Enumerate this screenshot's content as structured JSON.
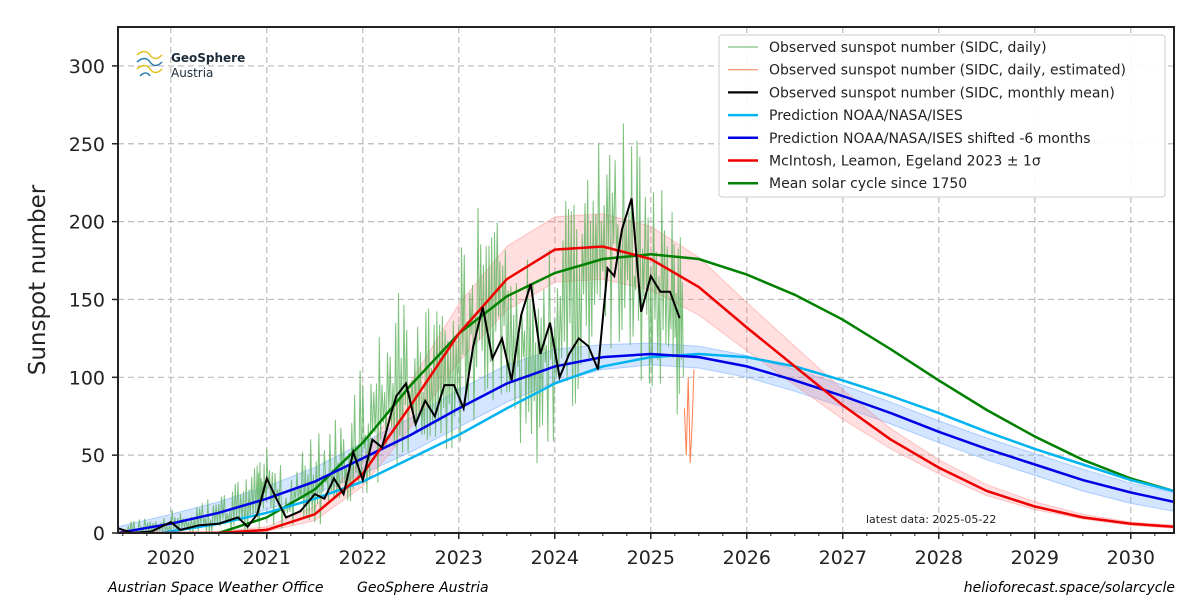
{
  "chart_data": {
    "type": "line",
    "ylabel": "Sunspot number",
    "xlim": [
      2019.45,
      2030.45
    ],
    "ylim": [
      0,
      325
    ],
    "x_ticks": [
      2020,
      2021,
      2022,
      2023,
      2024,
      2025,
      2026,
      2027,
      2028,
      2029,
      2030
    ],
    "y_ticks": [
      0,
      50,
      100,
      150,
      200,
      250,
      300
    ],
    "grid": true,
    "legend_position": "top-right",
    "latest_data": "latest data: 2025-05-22",
    "series": [
      {
        "name": "Observed sunspot number (SIDC, daily)",
        "color": "#5cb25c",
        "style": "thin",
        "x": [
          2019.5,
          2019.7,
          2019.9,
          2020.1,
          2020.3,
          2020.5,
          2020.7,
          2020.9,
          2021.0,
          2021.2,
          2021.4,
          2021.6,
          2021.8,
          2022.0,
          2022.2,
          2022.4,
          2022.6,
          2022.8,
          2023.0,
          2023.2,
          2023.4,
          2023.6,
          2023.8,
          2024.0,
          2024.2,
          2024.4,
          2024.6,
          2024.8,
          2025.0,
          2025.2,
          2025.35
        ],
        "y": [
          0,
          2,
          1,
          4,
          6,
          8,
          12,
          15,
          30,
          15,
          30,
          35,
          40,
          60,
          80,
          95,
          85,
          90,
          110,
          140,
          150,
          130,
          105,
          120,
          150,
          180,
          200,
          160,
          150,
          150,
          120
        ],
        "y_low": [
          0,
          0,
          0,
          0,
          0,
          0,
          0,
          0,
          5,
          0,
          5,
          5,
          10,
          20,
          30,
          40,
          40,
          45,
          55,
          75,
          70,
          60,
          40,
          55,
          80,
          100,
          110,
          90,
          80,
          75,
          60
        ],
        "y_high": [
          12,
          10,
          8,
          20,
          25,
          25,
          35,
          45,
          55,
          40,
          60,
          70,
          80,
          110,
          130,
          160,
          150,
          160,
          180,
          210,
          230,
          200,
          170,
          200,
          240,
          285,
          290,
          260,
          245,
          220,
          190
        ]
      },
      {
        "name": "Observed sunspot number (SIDC, daily, estimated)",
        "color": "#ff7f50",
        "style": "thin",
        "x": [
          2025.35,
          2025.37,
          2025.39,
          2025.41,
          2025.43,
          2025.45
        ],
        "y": [
          80,
          50,
          100,
          45,
          70,
          105
        ]
      },
      {
        "name": "Observed sunspot number (SIDC, monthly mean)",
        "color": "#000000",
        "style": "solid",
        "x": [
          2019.45,
          2019.6,
          2019.8,
          2020.0,
          2020.1,
          2020.3,
          2020.5,
          2020.7,
          2020.8,
          2020.9,
          2021.0,
          2021.1,
          2021.2,
          2021.35,
          2021.5,
          2021.6,
          2021.7,
          2021.8,
          2021.9,
          2022.0,
          2022.1,
          2022.2,
          2022.3,
          2022.35,
          2022.45,
          2022.55,
          2022.65,
          2022.75,
          2022.85,
          2022.95,
          2023.05,
          2023.15,
          2023.25,
          2023.35,
          2023.45,
          2023.55,
          2023.65,
          2023.75,
          2023.85,
          2023.95,
          2024.05,
          2024.15,
          2024.25,
          2024.35,
          2024.45,
          2024.55,
          2024.62,
          2024.7,
          2024.8,
          2024.9,
          2025.0,
          2025.1,
          2025.2,
          2025.3
        ],
        "y": [
          3,
          0,
          1,
          7,
          2,
          5,
          6,
          10,
          4,
          12,
          35,
          22,
          10,
          14,
          25,
          22,
          35,
          25,
          52,
          34,
          60,
          55,
          78,
          88,
          96,
          70,
          85,
          75,
          95,
          95,
          80,
          120,
          145,
          112,
          125,
          98,
          140,
          160,
          115,
          135,
          100,
          115,
          125,
          120,
          105,
          170,
          165,
          195,
          215,
          142,
          165,
          155,
          155,
          138
        ]
      },
      {
        "name": "Prediction NOAA/NASA/ISES",
        "color": "#00b4f0",
        "style": "solid",
        "x": [
          2019.9,
          2020.5,
          2021.0,
          2021.5,
          2022.0,
          2022.5,
          2023.0,
          2023.5,
          2024.0,
          2024.5,
          2025.0,
          2025.5,
          2026.0,
          2026.5,
          2027.0,
          2027.5,
          2028.0,
          2028.5,
          2029.0,
          2029.5,
          2030.0,
          2030.45
        ],
        "y": [
          0,
          6,
          13,
          22,
          33,
          48,
          63,
          80,
          96,
          107,
          113,
          115,
          113,
          107,
          98,
          88,
          77,
          65,
          54,
          44,
          34,
          27
        ]
      },
      {
        "name": "Prediction NOAA/NASA/ISES shifted -6 months",
        "color": "#0000e6",
        "style": "solid",
        "x": [
          2019.45,
          2020.0,
          2020.5,
          2021.0,
          2021.5,
          2022.0,
          2022.5,
          2023.0,
          2023.5,
          2024.0,
          2024.5,
          2025.0,
          2025.5,
          2026.0,
          2026.5,
          2027.0,
          2027.5,
          2028.0,
          2028.5,
          2029.0,
          2029.5,
          2030.0,
          2030.45
        ],
        "y": [
          0,
          6,
          13,
          22,
          33,
          48,
          63,
          80,
          96,
          107,
          113,
          115,
          113,
          107,
          98,
          88,
          77,
          65,
          54,
          44,
          34,
          26,
          20
        ],
        "band_low": [
          0,
          2,
          7,
          15,
          25,
          38,
          52,
          68,
          84,
          97,
          105,
          108,
          106,
          100,
          91,
          81,
          70,
          58,
          47,
          37,
          27,
          19,
          14
        ],
        "band_high": [
          4,
          12,
          20,
          30,
          42,
          58,
          74,
          92,
          108,
          118,
          121,
          122,
          120,
          114,
          105,
          95,
          84,
          72,
          61,
          51,
          41,
          32,
          26
        ]
      },
      {
        "name": "McIntosh, Leamon, Egeland 2023 ± 1σ",
        "color": "#ee0000",
        "style": "solid",
        "x": [
          2019.45,
          2020.0,
          2020.5,
          2021.0,
          2021.5,
          2022.0,
          2022.5,
          2023.0,
          2023.5,
          2024.0,
          2024.5,
          2025.0,
          2025.5,
          2026.0,
          2026.5,
          2027.0,
          2027.5,
          2028.0,
          2028.5,
          2029.0,
          2029.5,
          2030.0,
          2030.45
        ],
        "y": [
          0,
          0,
          0,
          2,
          12,
          38,
          82,
          128,
          163,
          182,
          184,
          176,
          158,
          132,
          107,
          82,
          60,
          42,
          27,
          17,
          10,
          6,
          4
        ],
        "band_low": [
          0,
          0,
          0,
          1,
          8,
          30,
          68,
          110,
          143,
          161,
          163,
          156,
          140,
          117,
          95,
          73,
          54,
          38,
          24,
          15,
          9,
          5,
          3
        ],
        "band_high": [
          0,
          0,
          1,
          4,
          17,
          48,
          97,
          147,
          184,
          203,
          205,
          197,
          177,
          148,
          120,
          92,
          67,
          47,
          31,
          20,
          12,
          7,
          5
        ]
      },
      {
        "name": "Mean solar cycle since 1750",
        "color": "#008000",
        "style": "solid",
        "x": [
          2020.5,
          2021.0,
          2021.5,
          2022.0,
          2022.5,
          2023.0,
          2023.5,
          2024.0,
          2024.5,
          2025.0,
          2025.5,
          2026.0,
          2026.5,
          2027.0,
          2027.5,
          2028.0,
          2028.5,
          2029.0,
          2029.5,
          2030.0,
          2030.45
        ],
        "y": [
          0,
          10,
          28,
          58,
          95,
          128,
          152,
          167,
          176,
          179,
          176,
          166,
          153,
          137,
          118,
          98,
          79,
          62,
          47,
          35,
          27
        ]
      }
    ]
  },
  "logo": {
    "line1": "GeoSphere",
    "line2": "Austria"
  },
  "footer": {
    "left": "Austrian Space Weather Office",
    "mid": "GeoSphere Austria",
    "right": "helioforecast.space/solarcycle"
  }
}
